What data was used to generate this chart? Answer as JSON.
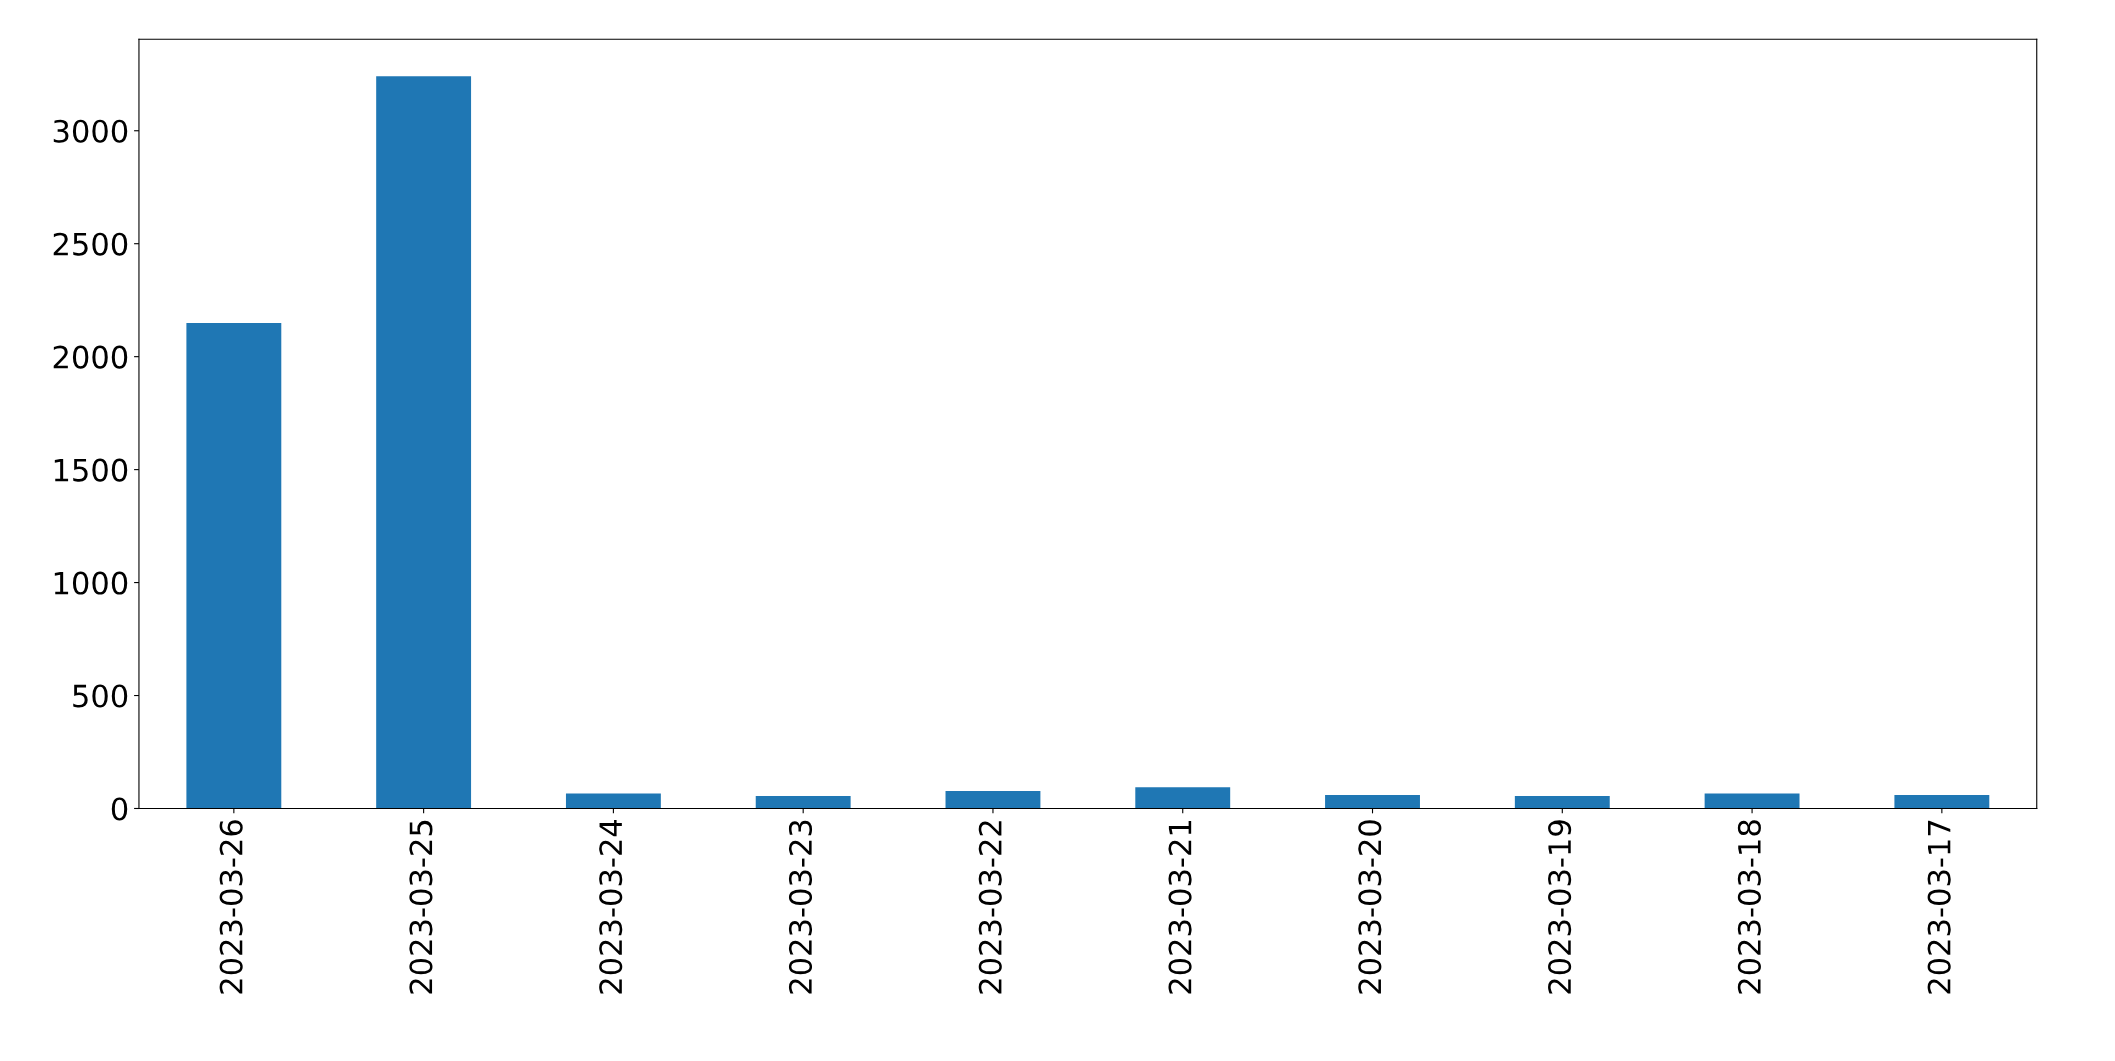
{
  "chart_data": {
    "type": "bar",
    "categories": [
      "2023-03-26",
      "2023-03-25",
      "2023-03-24",
      "2023-03-23",
      "2023-03-22",
      "2023-03-21",
      "2023-03-20",
      "2023-03-19",
      "2023-03-18",
      "2023-03-17"
    ],
    "values": [
      2149,
      3241,
      66,
      55,
      77,
      94,
      60,
      55,
      66,
      60
    ],
    "color": "#1f77b4",
    "ylim": [
      0,
      3405
    ],
    "yticks": [
      0,
      500,
      1000,
      1500,
      2000,
      2500,
      3000
    ],
    "grid": false,
    "legend": false
  }
}
